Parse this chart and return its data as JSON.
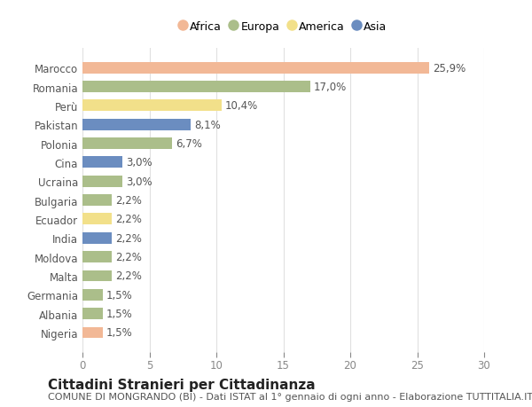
{
  "countries": [
    "Marocco",
    "Romania",
    "Perù",
    "Pakistan",
    "Polonia",
    "Cina",
    "Ucraina",
    "Bulgaria",
    "Ecuador",
    "India",
    "Moldova",
    "Malta",
    "Germania",
    "Albania",
    "Nigeria"
  ],
  "values": [
    25.9,
    17.0,
    10.4,
    8.1,
    6.7,
    3.0,
    3.0,
    2.2,
    2.2,
    2.2,
    2.2,
    2.2,
    1.5,
    1.5,
    1.5
  ],
  "labels": [
    "25,9%",
    "17,0%",
    "10,4%",
    "8,1%",
    "6,7%",
    "3,0%",
    "3,0%",
    "2,2%",
    "2,2%",
    "2,2%",
    "2,2%",
    "2,2%",
    "1,5%",
    "1,5%",
    "1,5%"
  ],
  "categories": [
    "Africa",
    "Europa",
    "America",
    "Asia",
    "Europa",
    "Asia",
    "Europa",
    "Europa",
    "America",
    "Asia",
    "Europa",
    "Europa",
    "Europa",
    "Europa",
    "Africa"
  ],
  "colors": {
    "Africa": "#F2B896",
    "Europa": "#ABBE8A",
    "America": "#F2E08A",
    "Asia": "#6B8DC0"
  },
  "legend_order": [
    "Africa",
    "Europa",
    "America",
    "Asia"
  ],
  "xlim": [
    0,
    30
  ],
  "xticks": [
    0,
    5,
    10,
    15,
    20,
    25,
    30
  ],
  "title": "Cittadini Stranieri per Cittadinanza",
  "subtitle": "COMUNE DI MONGRANDO (BI) - Dati ISTAT al 1° gennaio di ogni anno - Elaborazione TUTTITALIA.IT",
  "bg_color": "#ffffff",
  "grid_color": "#e0e0e0",
  "label_fontsize": 8.5,
  "value_fontsize": 8.5,
  "title_fontsize": 11,
  "subtitle_fontsize": 8,
  "bar_height": 0.6
}
